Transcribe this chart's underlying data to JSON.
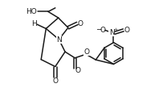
{
  "background": "#ffffff",
  "line_color": "#1a1a1a",
  "line_width": 1.1,
  "font_size": 6.5,
  "fig_width": 2.08,
  "fig_height": 1.15,
  "dpi": 100,
  "xlim": [
    -1.6,
    3.8
  ],
  "ylim": [
    -1.3,
    1.3
  ]
}
